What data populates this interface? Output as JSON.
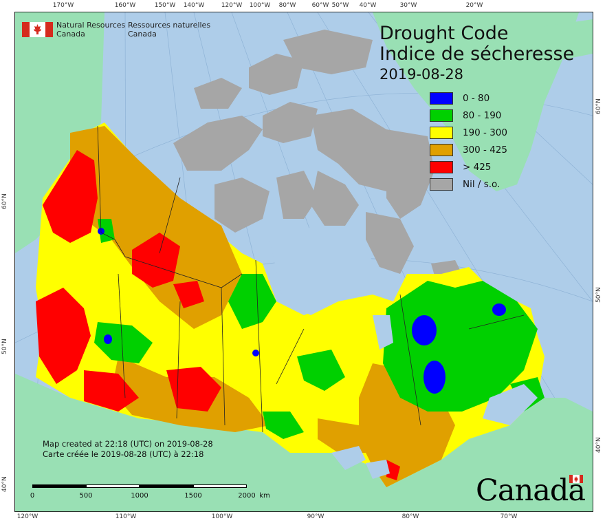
{
  "title": {
    "english": "Drought Code",
    "french": "Indice de sécheresse",
    "date": "2019-08-28"
  },
  "agency": {
    "english_line1": "Natural Resources",
    "english_line2": "Canada",
    "french_line1": "Ressources naturelles",
    "french_line2": "Canada"
  },
  "legend": [
    {
      "label": "0 - 80",
      "color": "#0000ff"
    },
    {
      "label": "80 - 190",
      "color": "#00d000"
    },
    {
      "label": "190 - 300",
      "color": "#ffff00"
    },
    {
      "label": "300 - 425",
      "color": "#e0a000"
    },
    {
      "label": "> 425",
      "color": "#ff0000"
    },
    {
      "label": "Nil / s.o.",
      "color": "#a6a6a6"
    }
  ],
  "credits": {
    "line_en": "Map created at 22:18 (UTC) on 2019-08-28",
    "line_fr": "Carte créée le 2019-08-28 (UTC) à 22:18"
  },
  "scale": {
    "ticks": [
      "0",
      "500",
      "1000",
      "1500",
      "2000"
    ],
    "unit": "km"
  },
  "graticule": {
    "top_longitudes": [
      "170°W",
      "160°W",
      "150°W",
      "140°W",
      "120°W",
      "100°W",
      "80°W",
      "60°W",
      "50°W",
      "40°W",
      "30°W",
      "20°W"
    ],
    "bottom_longitudes": [
      "120°W",
      "110°W",
      "100°W",
      "90°W",
      "80°W",
      "70°W"
    ],
    "left_latitudes": [
      "60°N",
      "50°N",
      "40°N"
    ],
    "right_latitudes": [
      "60°N",
      "50°N",
      "40°N"
    ]
  },
  "wordmark": "Canada",
  "colors": {
    "ocean": "#aecde9",
    "foreign_land": "#99e0b4",
    "no_data": "#a6a6a6"
  }
}
